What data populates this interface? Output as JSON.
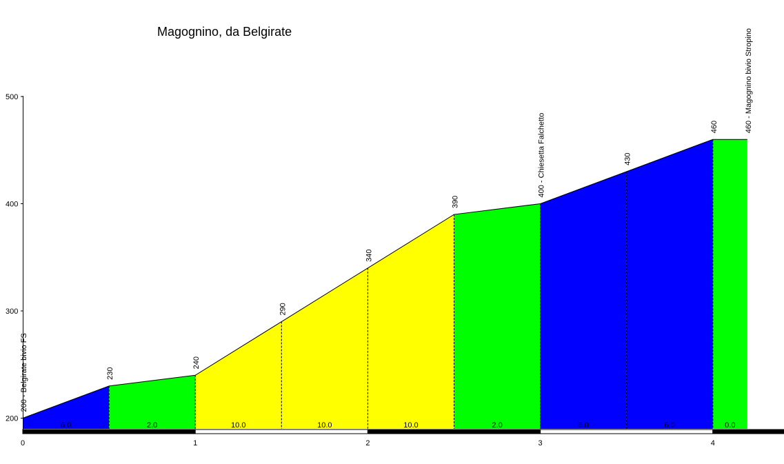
{
  "chart_data": {
    "type": "area",
    "title": "Magognino, da Belgirate",
    "xlabel": "",
    "ylabel": "",
    "xlim": [
      0,
      4.4
    ],
    "ylim": [
      190,
      500
    ],
    "x_ticks": [
      "0",
      "1",
      "2",
      "3",
      "4"
    ],
    "y_ticks": [
      "200",
      "300",
      "400",
      "500"
    ],
    "points": [
      {
        "km": 0.0,
        "alt": 200,
        "label": "200 - Belgirate bivio FS"
      },
      {
        "km": 0.5,
        "alt": 230,
        "label": "230"
      },
      {
        "km": 1.0,
        "alt": 240,
        "label": "240"
      },
      {
        "km": 1.5,
        "alt": 290,
        "label": "290"
      },
      {
        "km": 2.0,
        "alt": 340,
        "label": "340"
      },
      {
        "km": 2.5,
        "alt": 390,
        "label": "390"
      },
      {
        "km": 3.0,
        "alt": 400,
        "label": "400 - Chiesetta Falchetto"
      },
      {
        "km": 3.5,
        "alt": 430,
        "label": "430"
      },
      {
        "km": 4.0,
        "alt": 460,
        "label": "460"
      },
      {
        "km": 4.2,
        "alt": 460,
        "label": "460 - Magognino bivio Stropino"
      }
    ],
    "segments": [
      {
        "from": 0.0,
        "to": 0.5,
        "gradient": "6.0",
        "color": "#0000ff"
      },
      {
        "from": 0.5,
        "to": 1.0,
        "gradient": "2.0",
        "color": "#00ff00"
      },
      {
        "from": 1.0,
        "to": 1.5,
        "gradient": "10.0",
        "color": "#ffff00"
      },
      {
        "from": 1.5,
        "to": 2.0,
        "gradient": "10.0",
        "color": "#ffff00"
      },
      {
        "from": 2.0,
        "to": 2.5,
        "gradient": "10.0",
        "color": "#ffff00"
      },
      {
        "from": 2.5,
        "to": 3.0,
        "gradient": "2.0",
        "color": "#00ff00"
      },
      {
        "from": 3.0,
        "to": 3.5,
        "gradient": "6.0",
        "color": "#0000ff"
      },
      {
        "from": 3.5,
        "to": 4.0,
        "gradient": "6.0",
        "color": "#0000ff"
      },
      {
        "from": 4.0,
        "to": 4.2,
        "gradient": "0.0",
        "color": "#00ff00"
      }
    ]
  }
}
